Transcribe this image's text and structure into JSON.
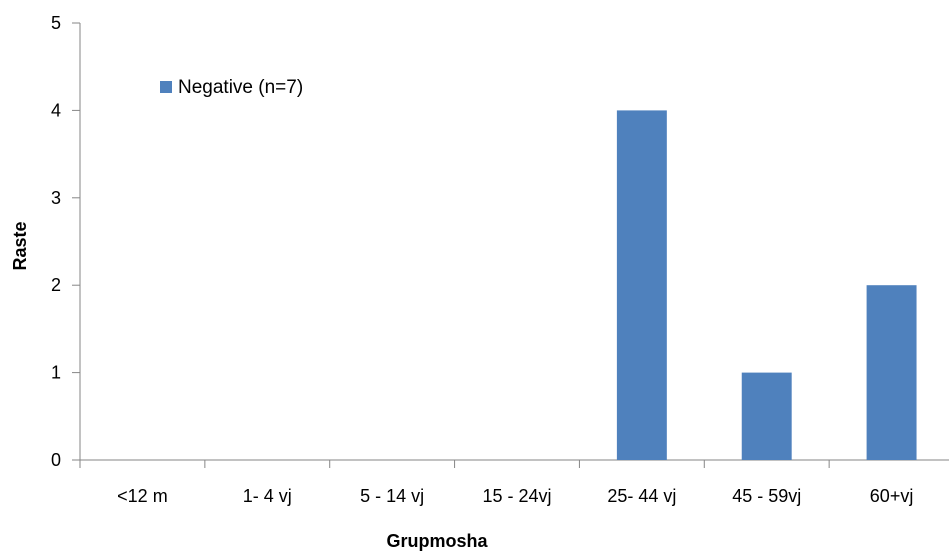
{
  "chart_data": {
    "type": "bar",
    "categories": [
      "<12 m",
      "1- 4 vj",
      "5 - 14 vj",
      "15 - 24vj",
      "25- 44 vj",
      "45 - 59vj",
      "60+vj"
    ],
    "series": [
      {
        "name": "Negative (n=7)",
        "values": [
          0,
          0,
          0,
          0,
          4,
          1,
          2
        ],
        "color": "#4f81bd"
      }
    ],
    "xlabel": "Grupmosha",
    "ylabel": "Raste",
    "ylim": [
      0,
      5
    ],
    "yticks": [
      0,
      1,
      2,
      3,
      4,
      5
    ],
    "grid": false,
    "legend_position": "top-left"
  }
}
